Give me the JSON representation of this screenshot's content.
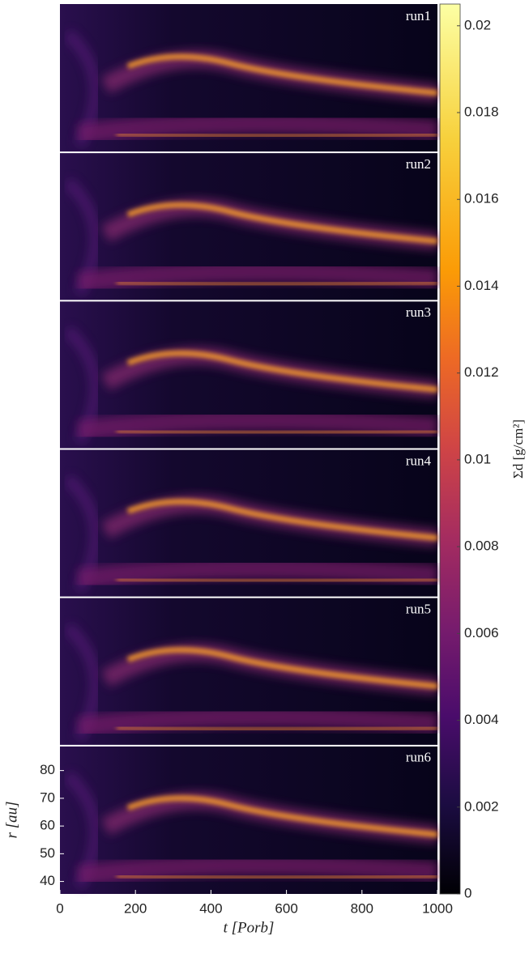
{
  "chart_data": {
    "type": "heatmap",
    "panels": [
      {
        "label": "run1"
      },
      {
        "label": "run2"
      },
      {
        "label": "run3"
      },
      {
        "label": "run4"
      },
      {
        "label": "run5"
      },
      {
        "label": "run6"
      }
    ],
    "xlabel": "t [Porb]",
    "ylabel": "r [au]",
    "xlim": [
      0,
      1000
    ],
    "xticks": [
      0,
      200,
      400,
      600,
      800,
      1000
    ],
    "ylim": [
      35.5,
      89
    ],
    "yticks": [
      40,
      50,
      60,
      70,
      80
    ],
    "colormap": "inferno",
    "colorbar": {
      "label": "Σd [g/cm²]",
      "lim": [
        0,
        0.0205
      ],
      "ticks": [
        0,
        0.002,
        0.004,
        0.006,
        0.008,
        0.01,
        0.012,
        0.014,
        0.016,
        0.018,
        0.02
      ]
    }
  }
}
